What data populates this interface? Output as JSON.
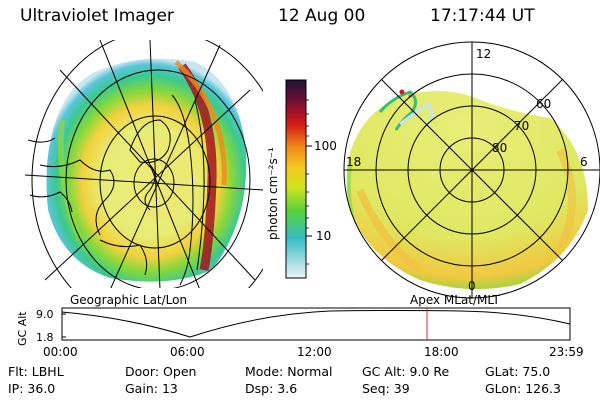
{
  "header": {
    "title": "Ultraviolet Imager",
    "date": "12 Aug 00",
    "time": "17:17:44 UT"
  },
  "colorbar": {
    "unit_label": "photon cm⁻²s⁻¹",
    "ticks": [
      "100",
      "10"
    ],
    "colors": [
      "#2a1848",
      "#7a1030",
      "#cc1818",
      "#f08a1a",
      "#f5c820",
      "#c8e01a",
      "#5ad23a",
      "#36bcc4",
      "#c8e4ec"
    ]
  },
  "left_panel": {
    "caption": "Geographic Lat/Lon"
  },
  "right_panel": {
    "caption": "Apex MLat/MLT",
    "mlt_labels": {
      "top": "12",
      "bottom": "0",
      "left": "18",
      "right": "6"
    },
    "lat_labels": [
      "60",
      "70",
      "80"
    ]
  },
  "timeline": {
    "ylabel": "GC Alt",
    "y_ticks": [
      "9.0",
      "1.8"
    ],
    "x_ticks": [
      "00:00",
      "06:00",
      "12:00",
      "18:00",
      "23:59"
    ],
    "current_time": "17:17:44"
  },
  "info": {
    "filter": {
      "label": "Flt:",
      "value": "LBHL"
    },
    "ip": {
      "label": "IP:",
      "value": "36.0"
    },
    "door": {
      "label": "Door:",
      "value": "Open"
    },
    "gain": {
      "label": "Gain:",
      "value": "13"
    },
    "mode": {
      "label": "Mode:",
      "value": "Normal"
    },
    "dsp": {
      "label": "Dsp:",
      "value": "3.6"
    },
    "gc_alt": {
      "label": "GC Alt:",
      "value": "9.0 Re"
    },
    "seq": {
      "label": "Seq:",
      "value": "39"
    },
    "glat": {
      "label": "GLat:",
      "value": "75.0"
    },
    "glon": {
      "label": "GLon:",
      "value": "126.3"
    }
  }
}
